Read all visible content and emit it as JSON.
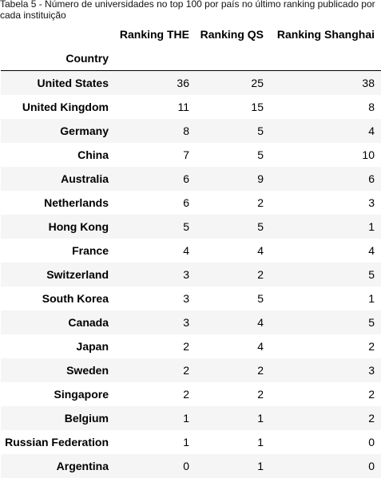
{
  "caption": "Tabela 5 - Número de universidades no top 100 por país no último ranking publicado por cada instituição",
  "columns": {
    "country": "Country",
    "the": "Ranking THE",
    "qs": "Ranking QS",
    "shanghai": "Ranking Shanghai"
  },
  "rows": [
    {
      "country": "United States",
      "the": "36",
      "qs": "25",
      "shanghai": "38"
    },
    {
      "country": "United Kingdom",
      "the": "11",
      "qs": "15",
      "shanghai": "8"
    },
    {
      "country": "Germany",
      "the": "8",
      "qs": "5",
      "shanghai": "4"
    },
    {
      "country": "China",
      "the": "7",
      "qs": "5",
      "shanghai": "10"
    },
    {
      "country": "Australia",
      "the": "6",
      "qs": "9",
      "shanghai": "6"
    },
    {
      "country": "Netherlands",
      "the": "6",
      "qs": "2",
      "shanghai": "3"
    },
    {
      "country": "Hong Kong",
      "the": "5",
      "qs": "5",
      "shanghai": "1"
    },
    {
      "country": "France",
      "the": "4",
      "qs": "4",
      "shanghai": "4"
    },
    {
      "country": "Switzerland",
      "the": "3",
      "qs": "2",
      "shanghai": "5"
    },
    {
      "country": "South Korea",
      "the": "3",
      "qs": "5",
      "shanghai": "1"
    },
    {
      "country": "Canada",
      "the": "3",
      "qs": "4",
      "shanghai": "5"
    },
    {
      "country": "Japan",
      "the": "2",
      "qs": "4",
      "shanghai": "2"
    },
    {
      "country": "Sweden",
      "the": "2",
      "qs": "2",
      "shanghai": "3"
    },
    {
      "country": "Singapore",
      "the": "2",
      "qs": "2",
      "shanghai": "2"
    },
    {
      "country": "Belgium",
      "the": "1",
      "qs": "1",
      "shanghai": "2"
    },
    {
      "country": "Russian Federation",
      "the": "1",
      "qs": "1",
      "shanghai": "0"
    },
    {
      "country": "Argentina",
      "the": "0",
      "qs": "1",
      "shanghai": "0"
    }
  ]
}
